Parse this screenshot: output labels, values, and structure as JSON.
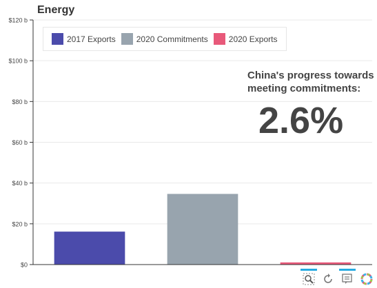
{
  "chart_data": {
    "type": "bar",
    "title": "Energy",
    "categories": [
      "2017 Exports",
      "2020 Commitments",
      "2020 Exports"
    ],
    "values": [
      16,
      34.5,
      0.9
    ],
    "colors": [
      "#4b4bab",
      "#98a4ae",
      "#e8597a"
    ],
    "ylim": [
      0,
      120
    ],
    "yticks": [
      0,
      20,
      40,
      60,
      80,
      100,
      120
    ],
    "ytick_labels": [
      "$0",
      "$20 b",
      "$40 b",
      "$60 b",
      "$80 b",
      "$100 b",
      "$120 b"
    ],
    "xlabel": "",
    "ylabel": "",
    "grid": true,
    "legend": {
      "placement": "top-left",
      "items": [
        "2017 Exports",
        "2020 Commitments",
        "2020 Exports"
      ]
    }
  },
  "annotation": {
    "label": "China's progress towards meeting commitments:",
    "label_line1": "China's progress towards",
    "label_line2": "meeting commitments:",
    "value": "2.6%"
  },
  "toolbar": {
    "tools": [
      "zoom-icon",
      "reset-icon",
      "hover-icon",
      "logo-icon"
    ],
    "accent_color": "#26aae1"
  }
}
